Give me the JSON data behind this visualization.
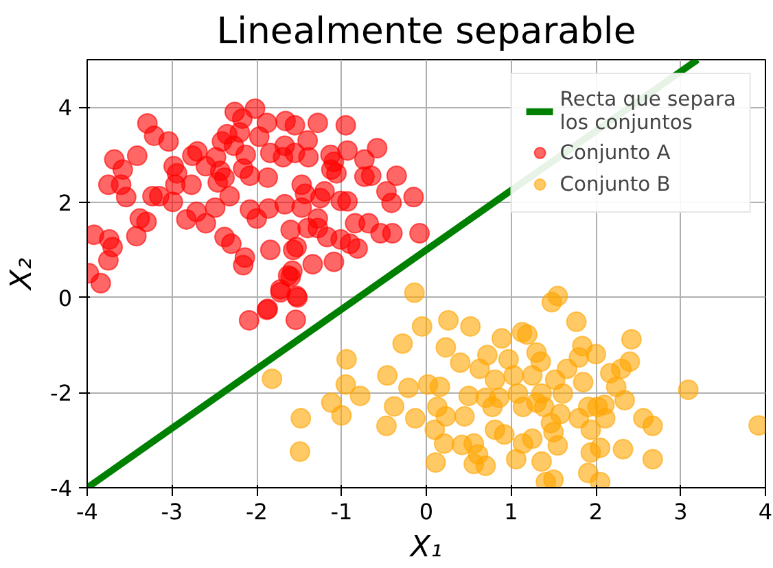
{
  "chart_data": {
    "type": "scatter",
    "title": "Linealmente separable",
    "xlabel": "X₁",
    "ylabel": "X₂",
    "xlim": [
      -4,
      4
    ],
    "ylim": [
      -4,
      5
    ],
    "xticks": [
      {
        "value": -4,
        "label": "-4"
      },
      {
        "value": -3,
        "label": "-3"
      },
      {
        "value": -2,
        "label": "-2"
      },
      {
        "value": -1,
        "label": "-1"
      },
      0,
      1,
      2,
      3,
      4
    ],
    "yticks": [
      {
        "value": -4,
        "label": "-4"
      },
      {
        "value": -2,
        "label": "-2"
      },
      0,
      2,
      4
    ],
    "grid": true,
    "legend": "top right",
    "series": [
      {
        "name": "Recta que separa\nlos conjuntos",
        "type": "line",
        "marker": "none",
        "color": "#008000",
        "line_style": "solid",
        "x": [
          -4,
          3.2
        ],
        "values": [
          -4,
          5
        ]
      },
      {
        "name": "Conjunto A",
        "marker": "circle",
        "color": "#ff0000",
        "x": [
          -3.29,
          -3.21,
          -3.04,
          -3.41,
          -3.68,
          -3.58,
          -3.75,
          -3.6,
          -3.54,
          -3.23,
          -3.15,
          -2.99,
          -3.38,
          -3.3,
          -3.42,
          -3.92,
          -3.74,
          -3.7,
          -3.75,
          -3.98,
          -3.84,
          -2.98,
          -2.94,
          -2.96,
          -2.77,
          -2.76,
          -2.7,
          -2.6,
          -2.83,
          -2.71,
          -2.6,
          -2.49,
          -2.48,
          -2.41,
          -2.38,
          -2.46,
          -2.32,
          -2.38,
          -2.3,
          -2.26,
          -2.02,
          -2.17,
          -2.2,
          -2.13,
          -2.16,
          -2.08,
          -2.08,
          -2.0,
          -2.14,
          -2.16,
          -1.97,
          -1.88,
          -1.84,
          -1.87,
          -1.86,
          -1.66,
          -1.55,
          -1.67,
          -1.69,
          -1.55,
          -1.4,
          -1.39,
          -1.28,
          -1.47,
          -1.67,
          -1.43,
          -1.47,
          -1.6,
          -1.4,
          -1.25,
          -1.28,
          -1.28,
          -1.2,
          -1.84,
          -1.57,
          -1.53,
          -1.34,
          -1.09,
          -1.58,
          -1.63,
          -1.72,
          -1.53,
          -1.87,
          -2.09,
          -1.54,
          -1.13,
          -1.09,
          -1.12,
          -1.06,
          -0.95,
          -0.93,
          -1.01,
          -0.93,
          -1.17,
          -1.01,
          -0.9,
          -0.81,
          -0.84,
          -0.68,
          -0.73,
          -0.73,
          -0.58,
          -0.65,
          -0.54,
          -0.4,
          -0.47,
          -0.41,
          -0.35,
          -0.15,
          -0.08,
          -2.35,
          -2.27,
          -2.43,
          -1.6,
          -1.72,
          -1.52,
          -1.88
        ],
        "values": [
          3.66,
          3.4,
          3.28,
          2.98,
          2.9,
          2.69,
          2.37,
          2.37,
          2.11,
          2.13,
          2.13,
          2.01,
          1.66,
          1.59,
          1.29,
          1.32,
          1.22,
          1.06,
          0.78,
          0.51,
          0.3,
          2.76,
          2.61,
          2.37,
          2.37,
          2.98,
          3.07,
          2.76,
          1.64,
          1.8,
          1.56,
          1.89,
          2.95,
          3.28,
          2.52,
          2.42,
          2.13,
          1.27,
          1.13,
          3.9,
          3.97,
          3.76,
          3.47,
          3.0,
          2.71,
          2.56,
          1.85,
          1.66,
          0.84,
          0.68,
          3.38,
          3.67,
          3.04,
          2.52,
          1.87,
          3.71,
          3.62,
          3.19,
          2.95,
          3.04,
          3.3,
          2.95,
          3.67,
          2.37,
          1.96,
          2.18,
          1.89,
          1.42,
          1.46,
          2.09,
          1.66,
          1.46,
          2.23,
          1.0,
          1.0,
          1.06,
          0.7,
          0.75,
          0.56,
          0.46,
          0.17,
          0.03,
          -0.24,
          -0.48,
          -0.47,
          3.0,
          2.85,
          2.69,
          2.61,
          3.62,
          3.09,
          2.03,
          2.02,
          1.27,
          1.22,
          1.13,
          1.03,
          1.56,
          1.56,
          2.9,
          2.54,
          3.14,
          2.56,
          1.35,
          1.35,
          2.23,
          1.99,
          2.56,
          2.11,
          1.35,
          3.43,
          3.19,
          2.66,
          0.43,
          0.11,
          0.0,
          -0.26
        ]
      },
      {
        "name": "Conjunto B",
        "marker": "circle",
        "color": "#ffa500",
        "x": [
          -0.14,
          -1.82,
          -1.48,
          -1.49,
          -0.94,
          -0.95,
          -1.12,
          -1.0,
          -0.78,
          -0.46,
          -0.47,
          -0.38,
          -0.28,
          -0.21,
          -0.13,
          -0.05,
          0.26,
          0.23,
          0.4,
          0.52,
          0.02,
          0.16,
          0.13,
          0.23,
          0.1,
          0.21,
          0.11,
          0.42,
          0.45,
          0.5,
          0.56,
          0.61,
          0.7,
          0.56,
          0.63,
          0.72,
          0.81,
          0.78,
          0.81,
          0.89,
          0.92,
          0.97,
          1.03,
          1.08,
          1.06,
          1.13,
          1.19,
          1.14,
          1.14,
          1.25,
          1.3,
          1.35,
          1.36,
          1.39,
          1.36,
          1.41,
          1.5,
          1.48,
          1.55,
          1.47,
          1.5,
          1.55,
          1.61,
          1.58,
          1.66,
          1.77,
          1.8,
          1.84,
          1.85,
          1.8,
          1.91,
          1.94,
          1.94,
          1.91,
          2.05,
          2.0,
          2.02,
          2.05,
          2.1,
          2.11,
          2.17,
          2.24,
          2.3,
          2.4,
          2.42,
          2.34,
          2.32,
          2.56,
          2.67,
          2.67,
          3.09,
          3.92,
          0.7,
          0.86,
          1.25,
          1.3,
          1.52
        ],
        "values": [
          0.1,
          -1.71,
          -2.54,
          -3.24,
          -1.3,
          -1.83,
          -2.21,
          -2.48,
          -2.07,
          -1.64,
          -2.7,
          -2.29,
          -0.97,
          -1.9,
          -2.54,
          -0.61,
          -0.48,
          -1.05,
          -1.37,
          -0.61,
          -1.83,
          -1.88,
          -2.3,
          -2.5,
          -2.78,
          -3.07,
          -3.47,
          -3.1,
          -2.5,
          -2.07,
          -3.07,
          -3.3,
          -3.54,
          -3.5,
          -1.5,
          -1.21,
          -1.73,
          -2.3,
          -2.78,
          -0.86,
          -2.88,
          -1.3,
          -1.64,
          -2.02,
          -3.4,
          -0.73,
          -0.78,
          -2.3,
          -3.07,
          -2.97,
          -1.16,
          -1.35,
          -2.02,
          -2.3,
          -3.45,
          -3.88,
          -3.83,
          -0.1,
          0.03,
          -2.64,
          -2.83,
          -3.11,
          -2.02,
          -2.45,
          -1.5,
          -0.51,
          -1.26,
          -1.02,
          -1.78,
          -2.54,
          -2.3,
          -2.78,
          -3.26,
          -3.69,
          -3.88,
          -1.19,
          -2.3,
          -3.16,
          -2.26,
          -2.54,
          -1.59,
          -1.88,
          -1.5,
          -1.35,
          -0.88,
          -2.16,
          -3.19,
          -2.54,
          -2.7,
          -3.4,
          -1.94,
          -2.69,
          -2.11,
          -2.11,
          -1.64,
          -2.21,
          -1.73
        ]
      }
    ]
  }
}
